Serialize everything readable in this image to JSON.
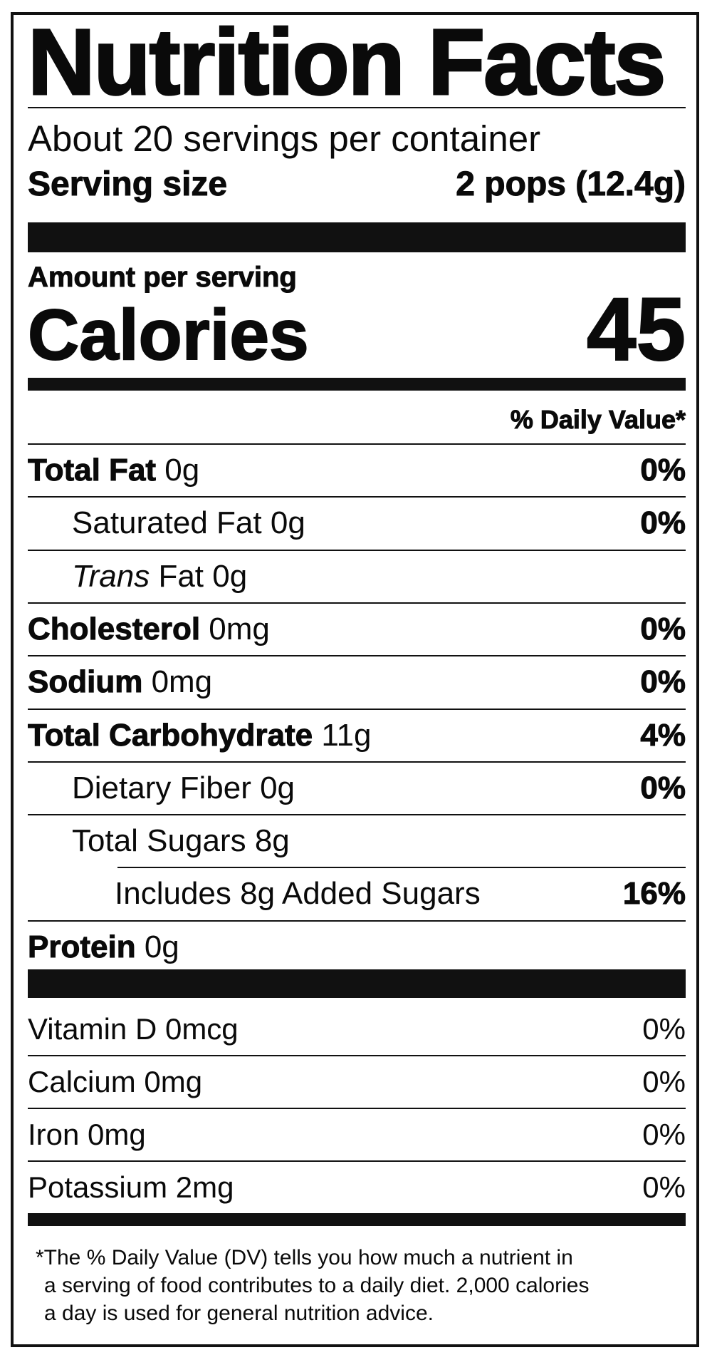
{
  "title": "Nutrition Facts",
  "servings_per_container": "About 20 servings per container",
  "serving_size": {
    "label": "Serving size",
    "value": "2 pops (12.4g)"
  },
  "amount_per_serving": "Amount per serving",
  "calories": {
    "label": "Calories",
    "value": "45"
  },
  "daily_value_header": "% Daily Value*",
  "nutrients": [
    {
      "name": "Total Fat",
      "amount": "0g",
      "dv": "0%",
      "bold": true,
      "indent": 0
    },
    {
      "name": "Saturated Fat",
      "amount": "0g",
      "dv": "0%",
      "bold": false,
      "indent": 1
    },
    {
      "name_italic": "Trans",
      "name": "Fat",
      "amount": "0g",
      "dv": "",
      "bold": false,
      "indent": 1
    },
    {
      "name": "Cholesterol",
      "amount": "0mg",
      "dv": "0%",
      "bold": true,
      "indent": 0
    },
    {
      "name": "Sodium",
      "amount": "0mg",
      "dv": "0%",
      "bold": true,
      "indent": 0
    },
    {
      "name": "Total Carbohydrate",
      "amount": "11g",
      "dv": "4%",
      "bold": true,
      "indent": 0
    },
    {
      "name": "Dietary Fiber",
      "amount": "0g",
      "dv": "0%",
      "bold": false,
      "indent": 1
    },
    {
      "name": "Total Sugars",
      "amount": "8g",
      "dv": "",
      "bold": false,
      "indent": 1
    },
    {
      "name": "Includes 8g Added Sugars",
      "amount": "",
      "dv": "16%",
      "bold": false,
      "indent": 2
    },
    {
      "name": "Protein",
      "amount": "0g",
      "dv": "",
      "bold": true,
      "indent": 0
    }
  ],
  "vitamins": [
    {
      "label": "Vitamin D 0mcg",
      "dv": "0%"
    },
    {
      "label": "Calcium 0mg",
      "dv": "0%"
    },
    {
      "label": "Iron 0mg",
      "dv": "0%"
    },
    {
      "label": "Potassium 2mg",
      "dv": "0%"
    }
  ],
  "footnote": [
    "*The % Daily Value (DV) tells you how much a nutrient in",
    "a serving of food contributes to a daily diet. 2,000 calories",
    "a day is used for general nutrition advice."
  ]
}
